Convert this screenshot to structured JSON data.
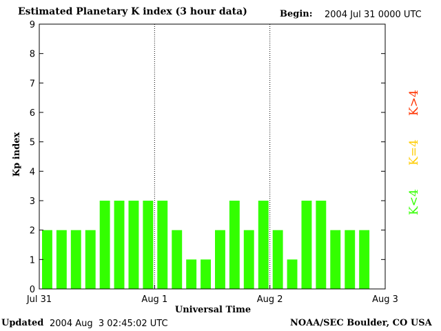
{
  "header": {
    "title": "Estimated Planetary K index (3 hour data)",
    "begin_label": "Begin:",
    "begin_value": "2004 Jul 31 0000 UTC"
  },
  "footer": {
    "updated_label": "Updated",
    "updated_value": "2004 Aug  3 02:45:02 UTC",
    "credit": "NOAA/SEC Boulder, CO USA"
  },
  "legend": {
    "low": {
      "label": "K<4",
      "color": "#33ff00"
    },
    "mid": {
      "label": "K=4",
      "color": "#ffcc00"
    },
    "high": {
      "label": "K>4",
      "color": "#ff3300"
    }
  },
  "chart_data": {
    "type": "bar",
    "title": "Estimated Planetary K index (3 hour data)",
    "xlabel": "Universal Time",
    "ylabel": "Kp index",
    "ylim": [
      0,
      9
    ],
    "yticks": [
      0,
      1,
      2,
      3,
      4,
      5,
      6,
      7,
      8,
      9
    ],
    "xticks": [
      "Jul 31",
      "Aug 1",
      "Aug 2",
      "Aug 3"
    ],
    "bins_per_day": 8,
    "days": 3,
    "values": [
      2,
      2,
      2,
      2,
      3,
      3,
      3,
      3,
      3,
      2,
      1,
      1,
      2,
      3,
      2,
      3,
      2,
      1,
      3,
      3,
      2,
      2,
      2
    ],
    "bar_color": "#33ff00",
    "day_separators": "dotted"
  }
}
